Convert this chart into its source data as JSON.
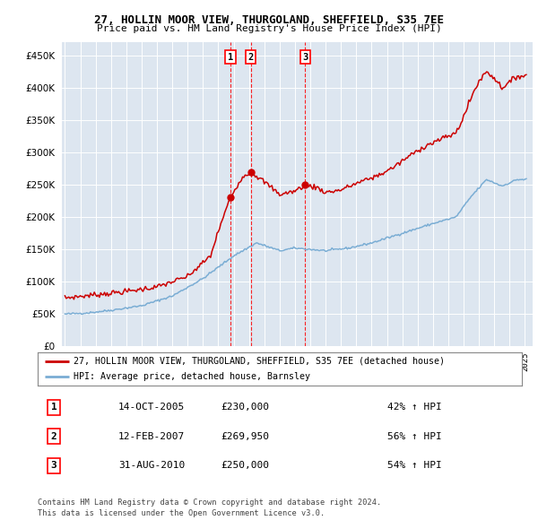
{
  "title1": "27, HOLLIN MOOR VIEW, THURGOLAND, SHEFFIELD, S35 7EE",
  "title2": "Price paid vs. HM Land Registry's House Price Index (HPI)",
  "ytick_vals": [
    0,
    50000,
    100000,
    150000,
    200000,
    250000,
    300000,
    350000,
    400000,
    450000
  ],
  "ylim": [
    0,
    470000
  ],
  "xlim_start": 1994.8,
  "xlim_end": 2025.5,
  "bg_color": "#dde6f0",
  "hpi_color": "#7aadd4",
  "price_color": "#cc0000",
  "sale1": {
    "year": 2005.79,
    "price": 230000,
    "label": "1",
    "date": "14-OCT-2005",
    "pct": "42%"
  },
  "sale2": {
    "year": 2007.12,
    "price": 269950,
    "label": "2",
    "date": "12-FEB-2007",
    "pct": "56%"
  },
  "sale3": {
    "year": 2010.67,
    "price": 250000,
    "label": "3",
    "date": "31-AUG-2010",
    "pct": "54%"
  },
  "legend1": "27, HOLLIN MOOR VIEW, THURGOLAND, SHEFFIELD, S35 7EE (detached house)",
  "legend2": "HPI: Average price, detached house, Barnsley",
  "footer1": "Contains HM Land Registry data © Crown copyright and database right 2024.",
  "footer2": "This data is licensed under the Open Government Licence v3.0."
}
